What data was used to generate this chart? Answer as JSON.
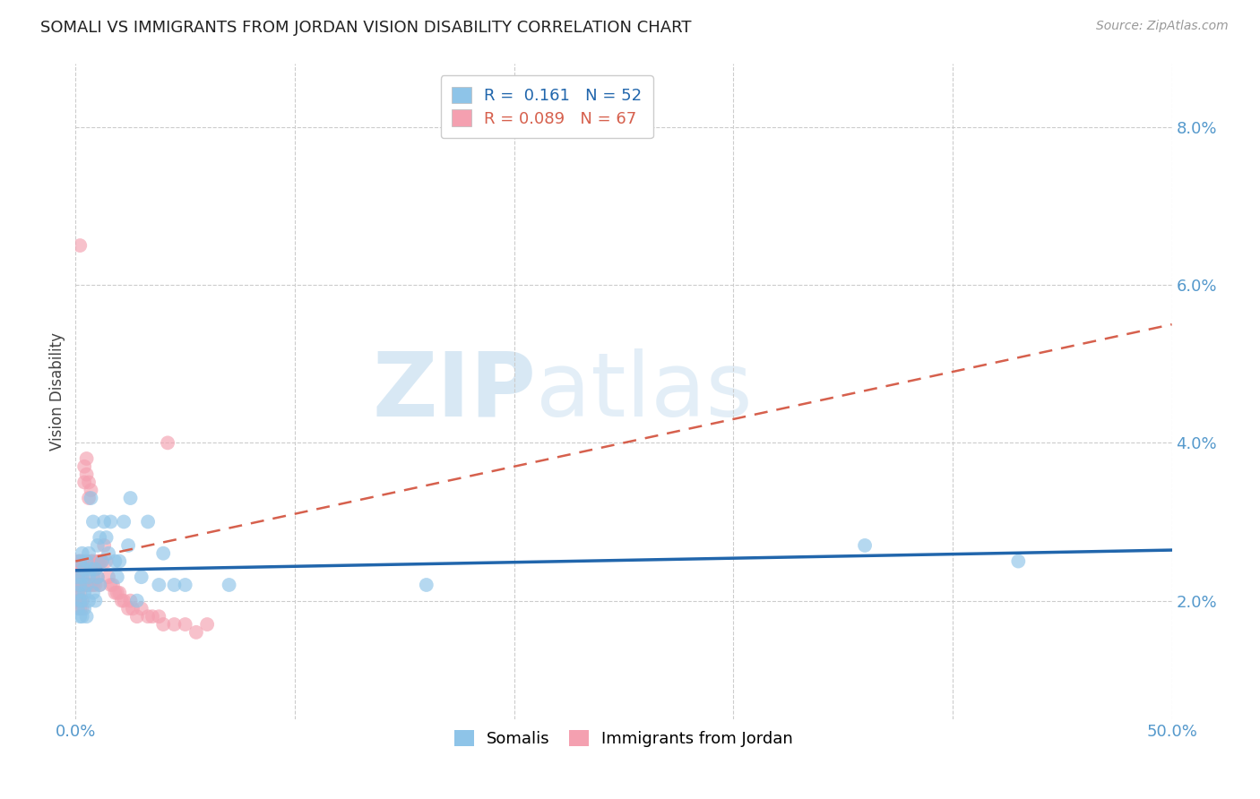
{
  "title": "SOMALI VS IMMIGRANTS FROM JORDAN VISION DISABILITY CORRELATION CHART",
  "source": "Source: ZipAtlas.com",
  "ylabel": "Vision Disability",
  "ytick_vals": [
    0.02,
    0.04,
    0.06,
    0.08
  ],
  "ytick_labels": [
    "2.0%",
    "4.0%",
    "6.0%",
    "8.0%"
  ],
  "xlim": [
    0.0,
    0.5
  ],
  "ylim": [
    0.005,
    0.088
  ],
  "watermark_text": "ZIPatlas",
  "somali_color": "#8ec4e8",
  "jordan_color": "#f4a0b0",
  "somali_line_color": "#2166ac",
  "jordan_line_color": "#d6604d",
  "background_color": "#ffffff",
  "title_color": "#222222",
  "title_fontsize": 13,
  "tick_color": "#5599cc",
  "somali_x": [
    0.001,
    0.001,
    0.001,
    0.002,
    0.002,
    0.002,
    0.002,
    0.003,
    0.003,
    0.003,
    0.003,
    0.004,
    0.004,
    0.004,
    0.005,
    0.005,
    0.005,
    0.006,
    0.006,
    0.006,
    0.007,
    0.007,
    0.008,
    0.008,
    0.009,
    0.009,
    0.01,
    0.01,
    0.011,
    0.011,
    0.012,
    0.013,
    0.014,
    0.015,
    0.016,
    0.018,
    0.019,
    0.02,
    0.022,
    0.024,
    0.025,
    0.028,
    0.03,
    0.033,
    0.038,
    0.04,
    0.045,
    0.05,
    0.07,
    0.16,
    0.36,
    0.43
  ],
  "somali_y": [
    0.023,
    0.021,
    0.019,
    0.025,
    0.022,
    0.02,
    0.018,
    0.026,
    0.023,
    0.02,
    0.018,
    0.024,
    0.021,
    0.019,
    0.025,
    0.022,
    0.018,
    0.026,
    0.023,
    0.02,
    0.033,
    0.024,
    0.03,
    0.021,
    0.024,
    0.02,
    0.027,
    0.023,
    0.028,
    0.022,
    0.025,
    0.03,
    0.028,
    0.026,
    0.03,
    0.025,
    0.023,
    0.025,
    0.03,
    0.027,
    0.033,
    0.02,
    0.023,
    0.03,
    0.022,
    0.026,
    0.022,
    0.022,
    0.022,
    0.022,
    0.027,
    0.025
  ],
  "jordan_x": [
    0.001,
    0.001,
    0.001,
    0.001,
    0.001,
    0.001,
    0.001,
    0.002,
    0.002,
    0.002,
    0.002,
    0.002,
    0.002,
    0.002,
    0.002,
    0.003,
    0.003,
    0.003,
    0.003,
    0.003,
    0.003,
    0.004,
    0.004,
    0.004,
    0.005,
    0.005,
    0.005,
    0.006,
    0.006,
    0.006,
    0.007,
    0.007,
    0.007,
    0.008,
    0.008,
    0.008,
    0.009,
    0.009,
    0.01,
    0.01,
    0.011,
    0.011,
    0.012,
    0.013,
    0.014,
    0.015,
    0.016,
    0.017,
    0.018,
    0.019,
    0.02,
    0.021,
    0.022,
    0.024,
    0.025,
    0.026,
    0.028,
    0.03,
    0.033,
    0.035,
    0.038,
    0.04,
    0.042,
    0.045,
    0.05,
    0.055,
    0.06
  ],
  "jordan_y": [
    0.022,
    0.023,
    0.024,
    0.025,
    0.022,
    0.021,
    0.02,
    0.025,
    0.024,
    0.023,
    0.022,
    0.021,
    0.02,
    0.019,
    0.065,
    0.025,
    0.024,
    0.023,
    0.022,
    0.02,
    0.019,
    0.037,
    0.035,
    0.024,
    0.038,
    0.036,
    0.022,
    0.035,
    0.033,
    0.022,
    0.034,
    0.025,
    0.022,
    0.025,
    0.023,
    0.022,
    0.024,
    0.022,
    0.025,
    0.023,
    0.025,
    0.022,
    0.025,
    0.027,
    0.025,
    0.023,
    0.022,
    0.022,
    0.021,
    0.021,
    0.021,
    0.02,
    0.02,
    0.019,
    0.02,
    0.019,
    0.018,
    0.019,
    0.018,
    0.018,
    0.018,
    0.017,
    0.04,
    0.017,
    0.017,
    0.016,
    0.017
  ],
  "jordan_R": 0.089,
  "somali_R": 0.161,
  "jordan_N": 67,
  "somali_N": 52
}
